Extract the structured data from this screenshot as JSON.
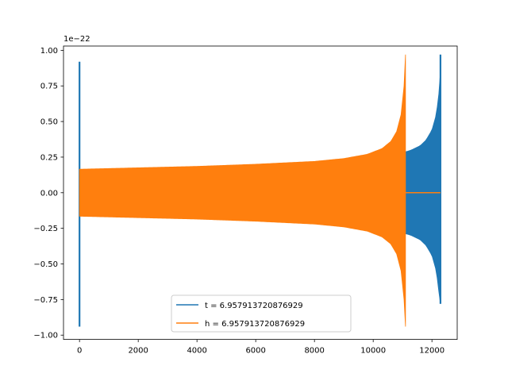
{
  "chart_data": {
    "type": "line",
    "title": "",
    "xlabel": "",
    "ylabel": "",
    "y_offset_label": "1e−22",
    "xlim": [
      -545,
      12860
    ],
    "ylim": [
      -1.03,
      1.03
    ],
    "x_ticks": [
      0,
      2000,
      4000,
      6000,
      8000,
      10000,
      12000
    ],
    "x_tick_labels": [
      "0",
      "2000",
      "4000",
      "6000",
      "8000",
      "10000",
      "12000"
    ],
    "y_ticks": [
      1.0,
      0.75,
      0.5,
      0.25,
      0.0,
      -0.25,
      -0.5,
      -0.75,
      -1.0
    ],
    "y_tick_labels": [
      "1.00",
      "0.75",
      "0.50",
      "0.25",
      "0.00",
      "−0.25",
      "−0.50",
      "−0.75",
      "−1.00"
    ],
    "grid": false,
    "legend_position": "lower-center",
    "series": [
      {
        "name": "t = 6.957913720876929",
        "color": "#1f77b4",
        "envelope": {
          "x": [
            0,
            2000,
            4000,
            6000,
            8000,
            9500,
            10300,
            10800,
            11000,
            11150,
            11300,
            11600,
            11800,
            12000,
            12150,
            12250,
            12290
          ],
          "upper": [
            0.16,
            0.17,
            0.18,
            0.195,
            0.215,
            0.235,
            0.255,
            0.275,
            0.285,
            0.29,
            0.3,
            0.33,
            0.37,
            0.44,
            0.55,
            0.72,
            0.85
          ],
          "lower": [
            -0.16,
            -0.17,
            -0.18,
            -0.195,
            -0.215,
            -0.235,
            -0.255,
            -0.275,
            -0.285,
            -0.29,
            -0.3,
            -0.33,
            -0.37,
            -0.44,
            -0.55,
            -0.72,
            -0.78
          ]
        },
        "spikes": [
          {
            "x": 0,
            "ymin": -0.94,
            "ymax": 0.92
          },
          {
            "x": 12290,
            "ymin": -0.78,
            "ymax": 0.97
          }
        ]
      },
      {
        "name": "h = 6.957913720876929",
        "color": "#ff7f0e",
        "envelope": {
          "x": [
            0,
            1000,
            2000,
            4000,
            6000,
            8000,
            9000,
            9800,
            10300,
            10600,
            10800,
            10950,
            11050,
            11100
          ],
          "upper": [
            0.165,
            0.17,
            0.175,
            0.185,
            0.2,
            0.22,
            0.24,
            0.27,
            0.31,
            0.36,
            0.43,
            0.55,
            0.75,
            0.97
          ],
          "lower": [
            -0.165,
            -0.17,
            -0.175,
            -0.185,
            -0.2,
            -0.22,
            -0.24,
            -0.27,
            -0.31,
            -0.36,
            -0.43,
            -0.55,
            -0.75,
            -0.94
          ]
        },
        "flat": {
          "x": [
            11100,
            12290
          ],
          "y": 0.0
        }
      }
    ]
  }
}
